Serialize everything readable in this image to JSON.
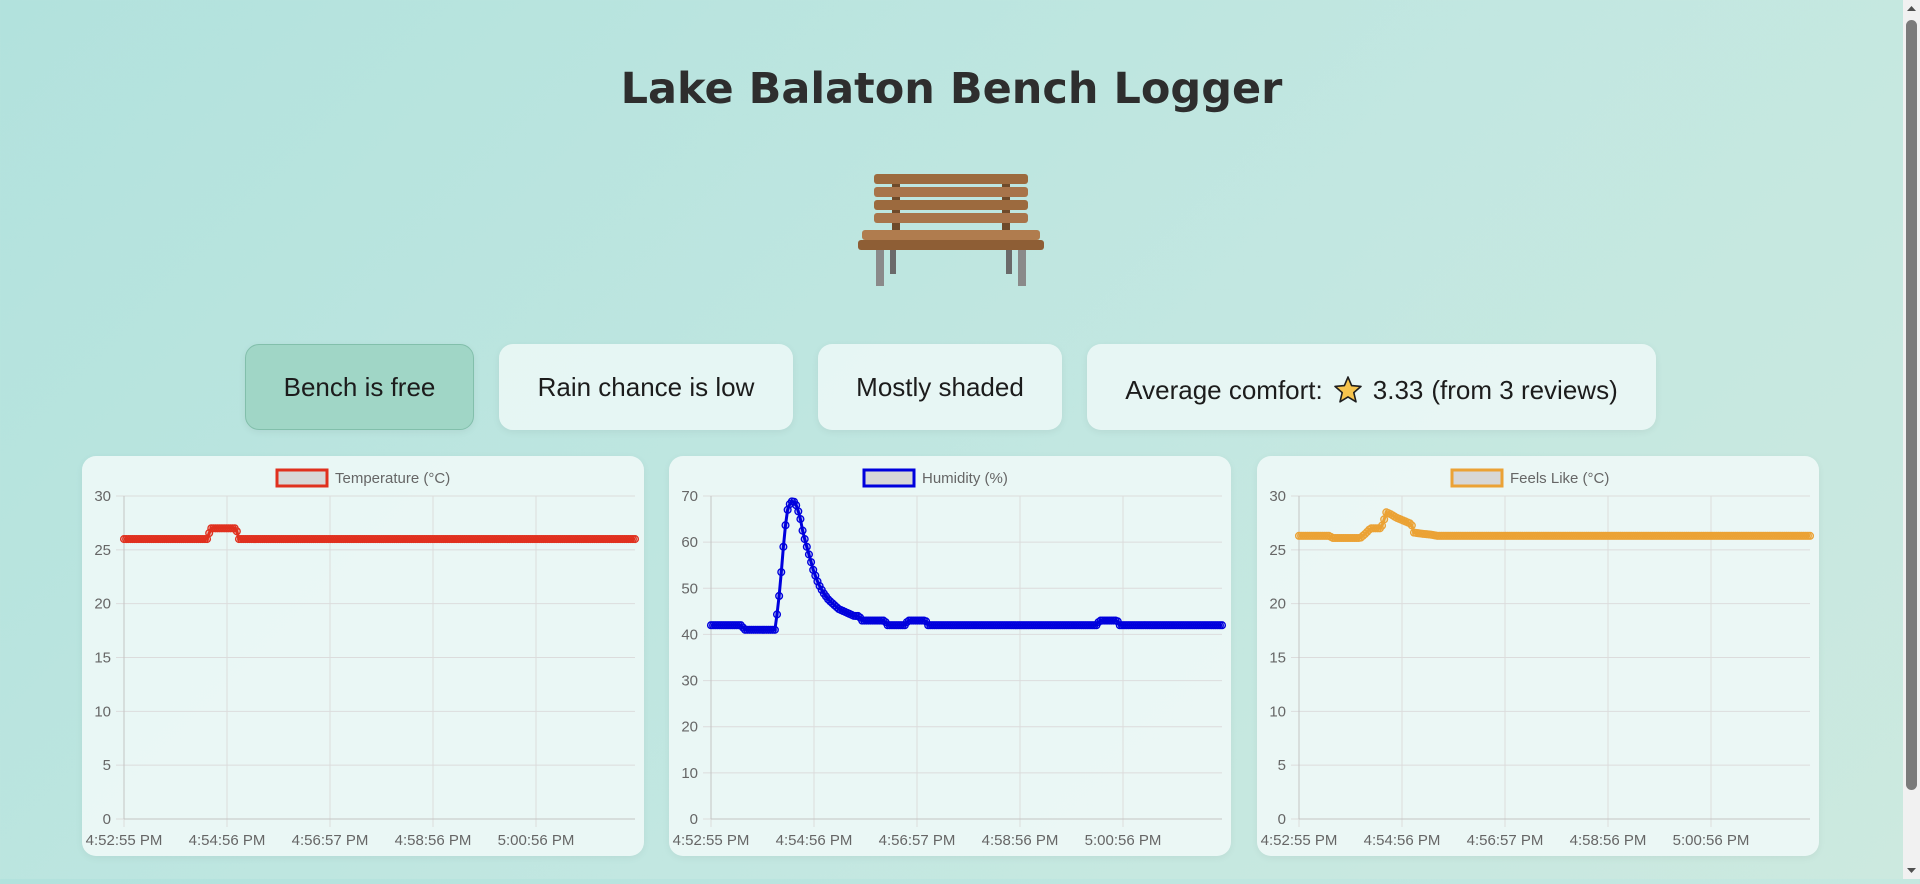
{
  "page": {
    "title": "Lake Balaton Bench Logger",
    "bench_icon": "park-bench-illustration"
  },
  "status": {
    "bench": "Bench is free",
    "rain": "Rain chance is low",
    "shade": "Mostly shaded",
    "comfort_prefix": "Average comfort:",
    "comfort_icon": "star-icon",
    "comfort_value": "3.33",
    "comfort_suffix": "(from 3 reviews)"
  },
  "colors": {
    "bench_free": "#a0d6c6",
    "temperature": "#e0301e",
    "humidity": "#0000dd",
    "feels_like": "#eba235"
  },
  "chart_data": [
    {
      "type": "line",
      "series": [
        {
          "name": "Temperature (°C)",
          "color": "#e0301e",
          "points": [
            [
              0,
              26
            ],
            [
              0.165,
              26
            ],
            [
              0.168,
              27
            ],
            [
              0.22,
              27
            ],
            [
              0.223,
              26
            ],
            [
              1,
              26
            ]
          ]
        }
      ],
      "x_tick_labels": [
        "4:52:55 PM",
        "4:54:56 PM",
        "4:56:57 PM",
        "4:58:56 PM",
        "5:00:56 PM"
      ],
      "ylim": [
        0,
        30
      ],
      "y_ticks": [
        0,
        5,
        10,
        15,
        20,
        25,
        30
      ],
      "grid": true,
      "legend": "top-center"
    },
    {
      "type": "line",
      "series": [
        {
          "name": "Humidity (%)",
          "color": "#0000dd",
          "points": [
            [
              0,
              42
            ],
            [
              0.06,
              42
            ],
            [
              0.065,
              41
            ],
            [
              0.125,
              41
            ],
            [
              0.13,
              45
            ],
            [
              0.135,
              50
            ],
            [
              0.14,
              57
            ],
            [
              0.145,
              63
            ],
            [
              0.15,
              67
            ],
            [
              0.155,
              68.5
            ],
            [
              0.16,
              69
            ],
            [
              0.165,
              68.5
            ],
            [
              0.17,
              67
            ],
            [
              0.175,
              65
            ],
            [
              0.18,
              62
            ],
            [
              0.185,
              60
            ],
            [
              0.19,
              58
            ],
            [
              0.195,
              56
            ],
            [
              0.2,
              54
            ],
            [
              0.21,
              51
            ],
            [
              0.22,
              49
            ],
            [
              0.23,
              47.5
            ],
            [
              0.24,
              46.5
            ],
            [
              0.25,
              45.5
            ],
            [
              0.26,
              45
            ],
            [
              0.27,
              44.5
            ],
            [
              0.28,
              44
            ],
            [
              0.29,
              44
            ],
            [
              0.295,
              43
            ],
            [
              0.34,
              43
            ],
            [
              0.345,
              42
            ],
            [
              0.38,
              42
            ],
            [
              0.385,
              43
            ],
            [
              0.42,
              43
            ],
            [
              0.425,
              42
            ],
            [
              0.755,
              42
            ],
            [
              0.76,
              43
            ],
            [
              0.795,
              43
            ],
            [
              0.8,
              42
            ],
            [
              1,
              42
            ]
          ]
        }
      ],
      "x_tick_labels": [
        "4:52:55 PM",
        "4:54:56 PM",
        "4:56:57 PM",
        "4:58:56 PM",
        "5:00:56 PM"
      ],
      "ylim": [
        0,
        70
      ],
      "y_ticks": [
        0,
        10,
        20,
        30,
        40,
        50,
        60,
        70
      ],
      "grid": true,
      "legend": "top-center"
    },
    {
      "type": "line",
      "series": [
        {
          "name": "Feels Like (°C)",
          "color": "#eba235",
          "points": [
            [
              0,
              26.3
            ],
            [
              0.06,
              26.3
            ],
            [
              0.065,
              26.1
            ],
            [
              0.12,
              26.1
            ],
            [
              0.13,
              26.5
            ],
            [
              0.14,
              27
            ],
            [
              0.16,
              27
            ],
            [
              0.165,
              27.5
            ],
            [
              0.17,
              28.5
            ],
            [
              0.18,
              28.3
            ],
            [
              0.19,
              28
            ],
            [
              0.2,
              27.8
            ],
            [
              0.21,
              27.6
            ],
            [
              0.22,
              27.4
            ],
            [
              0.225,
              26.6
            ],
            [
              0.24,
              26.5
            ],
            [
              0.26,
              26.4
            ],
            [
              0.27,
              26.3
            ],
            [
              1,
              26.3
            ]
          ]
        }
      ],
      "x_tick_labels": [
        "4:52:55 PM",
        "4:54:56 PM",
        "4:56:57 PM",
        "4:58:56 PM",
        "5:00:56 PM"
      ],
      "ylim": [
        0,
        30
      ],
      "y_ticks": [
        0,
        5,
        10,
        15,
        20,
        25,
        30
      ],
      "grid": true,
      "legend": "top-center"
    }
  ]
}
